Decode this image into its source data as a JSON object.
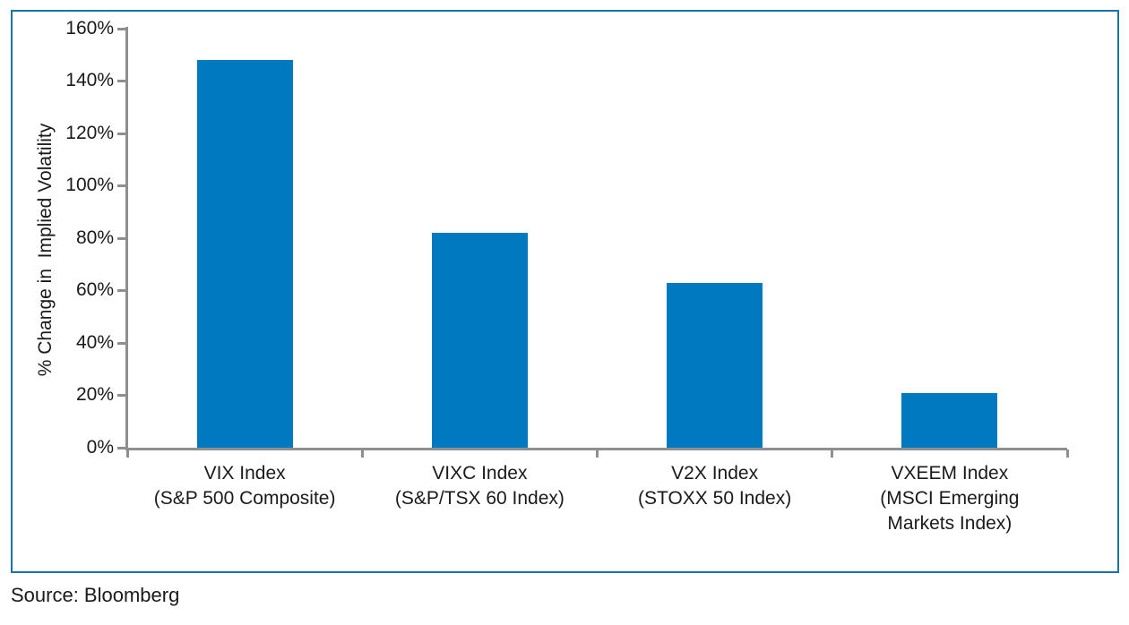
{
  "colors": {
    "bar": "#0079C1",
    "frame_border": "#1B74A8",
    "axis": "#8F8F8F",
    "text": "#1A1A1A"
  },
  "chart_data": {
    "type": "bar",
    "categories": [
      {
        "lines": [
          "VIX Index",
          "(S&P 500 Composite)"
        ]
      },
      {
        "lines": [
          "VIXC Index",
          "(S&P/TSX 60 Index)"
        ]
      },
      {
        "lines": [
          "V2X Index",
          "(STOXX 50 Index)"
        ]
      },
      {
        "lines": [
          "VXEEM Index",
          "(MSCI Emerging",
          "Markets Index)"
        ]
      }
    ],
    "values": [
      148,
      82,
      63,
      21
    ],
    "title": "",
    "xlabel": "",
    "ylabel": "% Change in  Implied Volatility",
    "ylim": [
      0,
      160
    ],
    "ytick_step": 20,
    "yticks": [
      {
        "value": 0,
        "label": "0%"
      },
      {
        "value": 20,
        "label": "20%"
      },
      {
        "value": 40,
        "label": "40%"
      },
      {
        "value": 60,
        "label": "60%"
      },
      {
        "value": 80,
        "label": "80%"
      },
      {
        "value": 100,
        "label": "100%"
      },
      {
        "value": 120,
        "label": "120%"
      },
      {
        "value": 140,
        "label": "140%"
      },
      {
        "value": 160,
        "label": "160%"
      }
    ],
    "grid": false,
    "legend": null
  },
  "source": "Source: Bloomberg"
}
